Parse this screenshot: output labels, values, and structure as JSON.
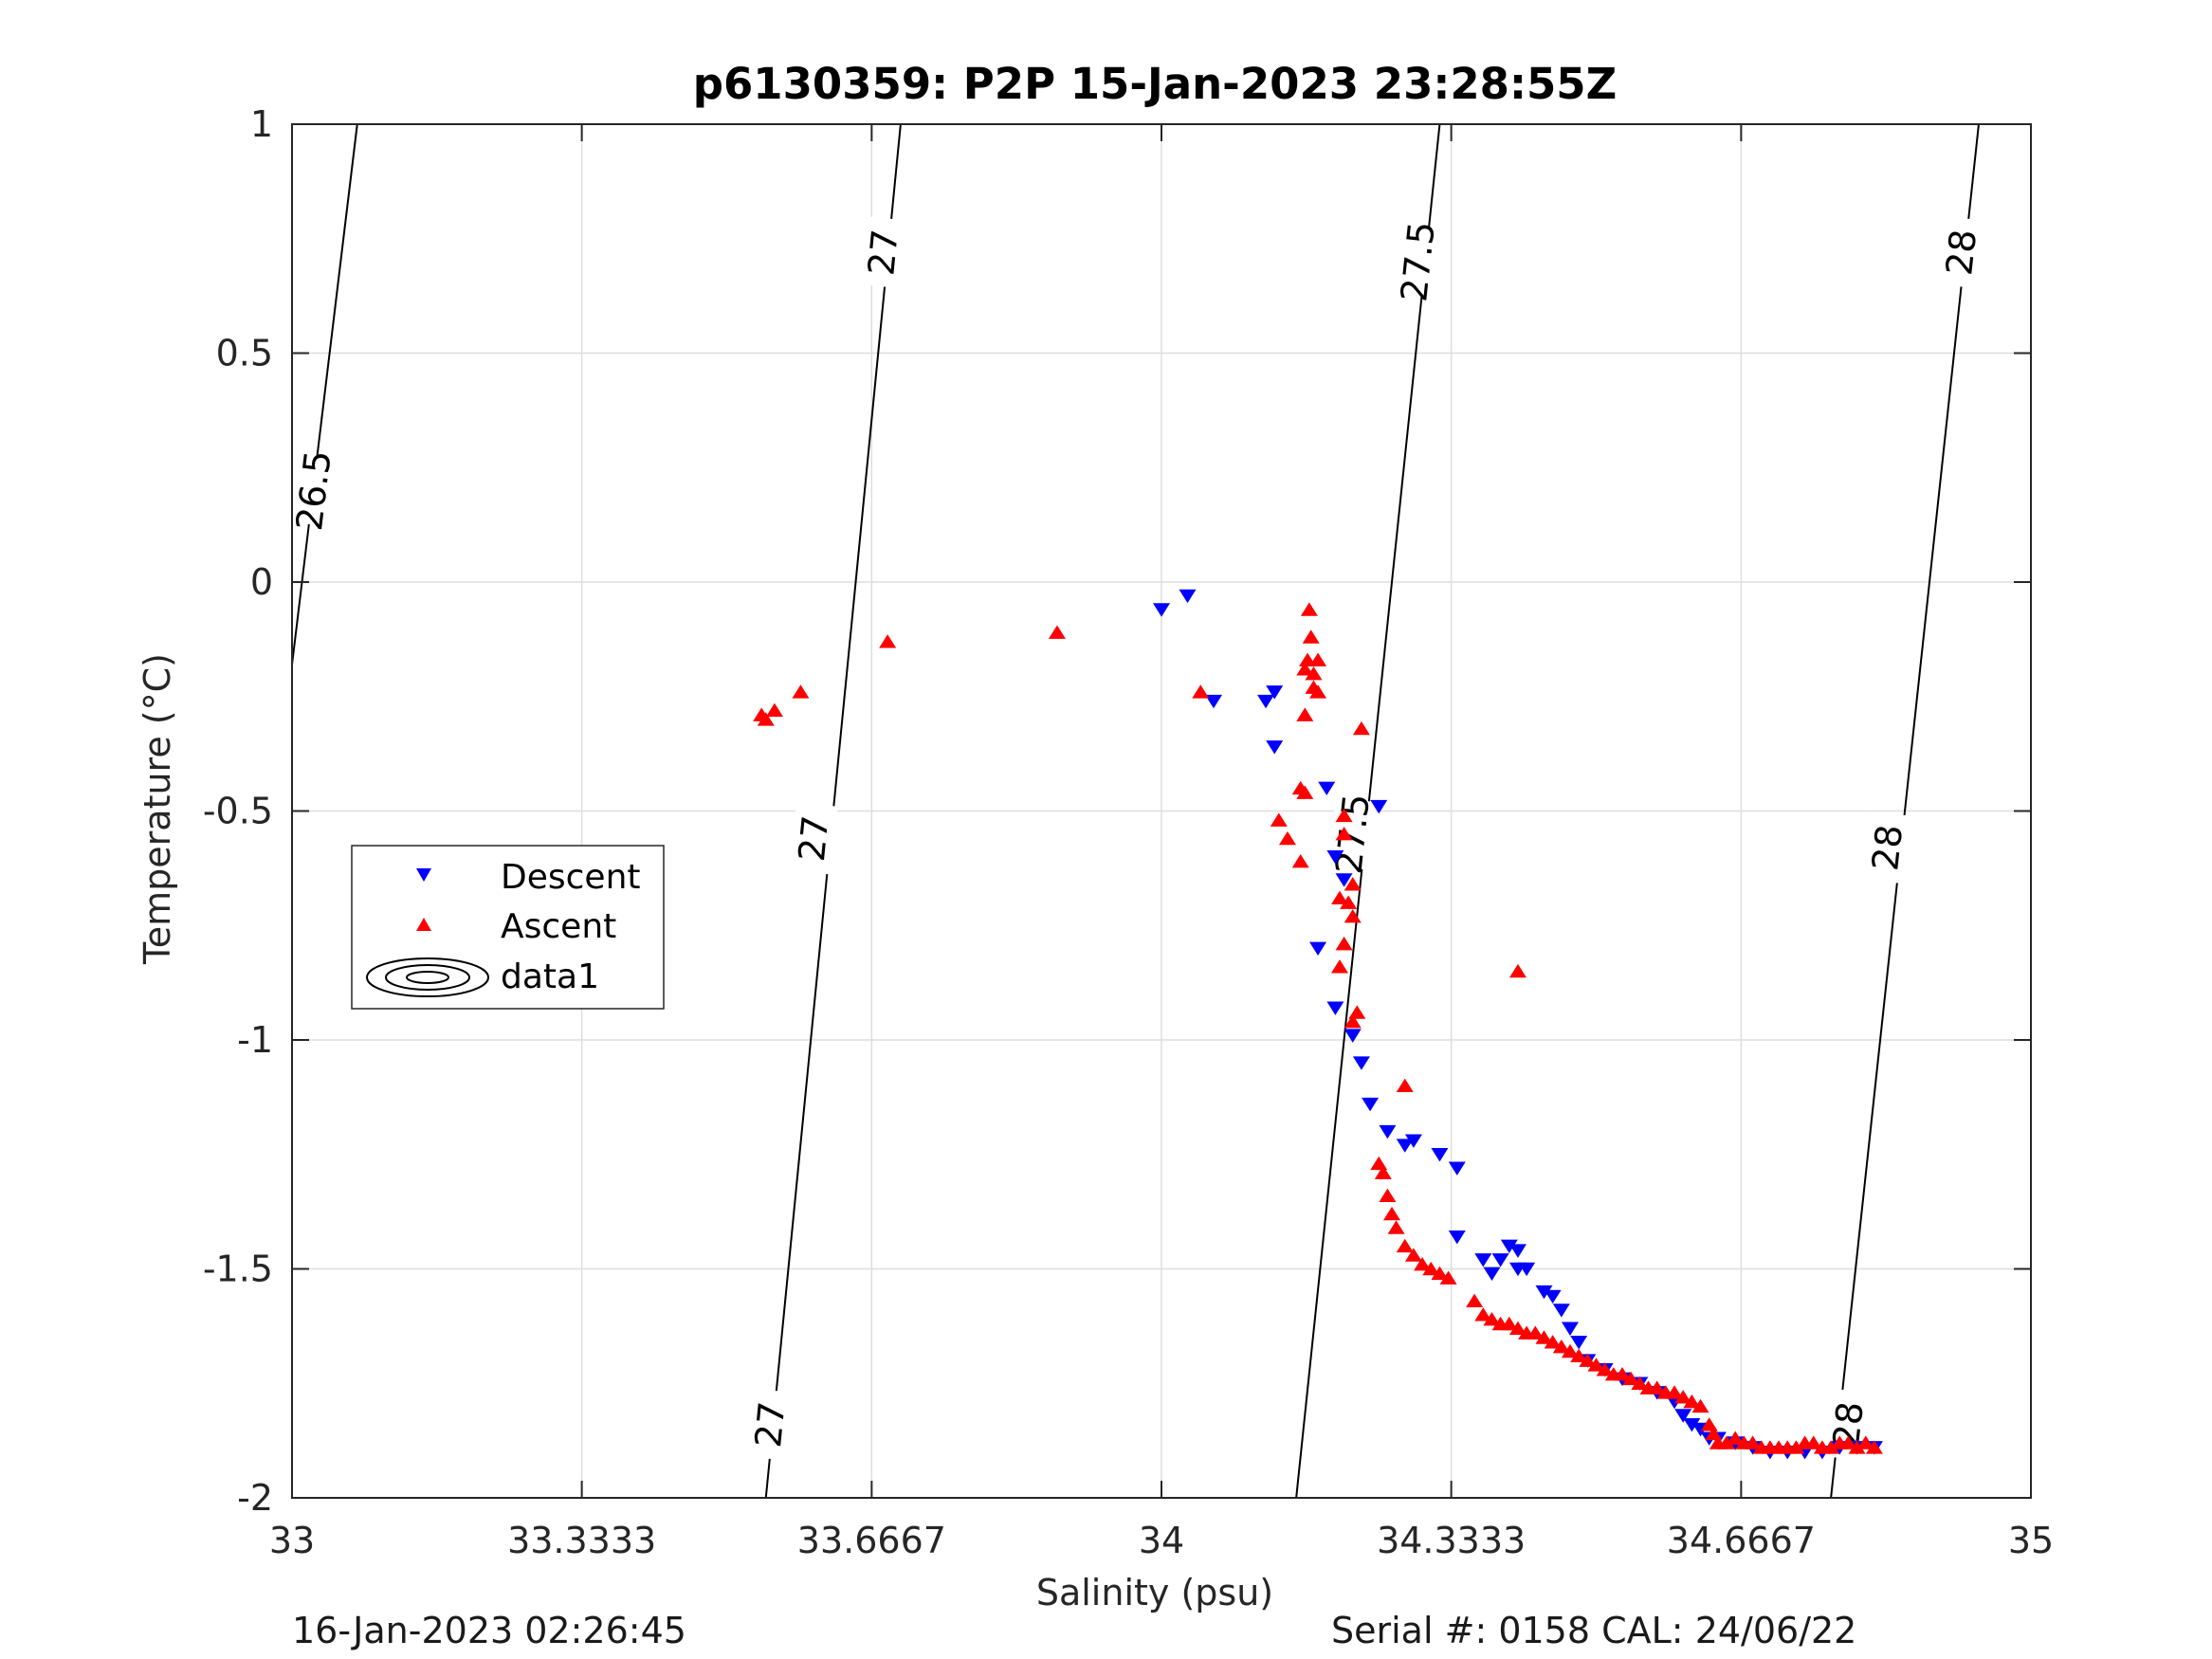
{
  "chart_data": {
    "type": "scatter",
    "title": "p6130359: P2P 15-Jan-2023 23:28:55Z",
    "xlabel": "Salinity (psu)",
    "ylabel": "Temperature (°C)",
    "xlim": [
      33,
      35
    ],
    "ylim": [
      -2,
      1
    ],
    "x_ticks": [
      "33",
      "33.3333",
      "33.6667",
      "34",
      "34.3333",
      "34.6667",
      "35"
    ],
    "y_ticks": [
      "1",
      "0.5",
      "0",
      "-0.5",
      "-1",
      "-1.5",
      "-2"
    ],
    "grid": true,
    "legend_position": "left",
    "legend": [
      "Descent",
      "Ascent",
      "data1"
    ],
    "colors": {
      "descent": "#0000ff",
      "ascent": "#ff0000",
      "contour": "#000000",
      "grid": "#dedede"
    },
    "density_contours": [
      {
        "level": "26.5",
        "points": [
          [
            33.075,
            1.0
          ],
          [
            33.0,
            -0.18
          ]
        ],
        "labels": [
          [
            33.025,
            0.2
          ]
        ]
      },
      {
        "level": "27",
        "points": [
          [
            33.7,
            1.0
          ],
          [
            33.545,
            -2.0
          ]
        ],
        "labels": [
          [
            33.68,
            0.72
          ],
          [
            33.6,
            -0.56
          ],
          [
            33.55,
            -1.84
          ]
        ]
      },
      {
        "level": "27.5",
        "points": [
          [
            34.32,
            1.0
          ],
          [
            34.155,
            -2.0
          ]
        ],
        "labels": [
          [
            34.295,
            0.7
          ],
          [
            34.22,
            -0.55
          ]
        ]
      },
      {
        "level": "28",
        "points": [
          [
            34.94,
            1.0
          ],
          [
            34.77,
            -2.0
          ]
        ],
        "labels": [
          [
            34.92,
            0.72
          ],
          [
            34.835,
            -0.58
          ],
          [
            34.79,
            -1.84
          ]
        ]
      }
    ],
    "series": [
      {
        "name": "Descent",
        "marker": "triangle-down",
        "points": [
          [
            34.0,
            -0.06
          ],
          [
            34.03,
            -0.03
          ],
          [
            34.06,
            -0.26
          ],
          [
            34.12,
            -0.26
          ],
          [
            34.13,
            -0.24
          ],
          [
            34.13,
            -0.36
          ],
          [
            34.19,
            -0.45
          ],
          [
            34.2,
            -0.6
          ],
          [
            34.21,
            -0.65
          ],
          [
            34.18,
            -0.8
          ],
          [
            34.2,
            -0.93
          ],
          [
            34.22,
            -0.99
          ],
          [
            34.23,
            -1.05
          ],
          [
            34.24,
            -1.14
          ],
          [
            34.26,
            -1.2
          ],
          [
            34.28,
            -1.23
          ],
          [
            34.29,
            -1.22
          ],
          [
            34.32,
            -1.25
          ],
          [
            34.34,
            -1.28
          ],
          [
            34.25,
            -0.49
          ],
          [
            34.34,
            -1.43
          ],
          [
            34.37,
            -1.48
          ],
          [
            34.38,
            -1.51
          ],
          [
            34.39,
            -1.48
          ],
          [
            34.4,
            -1.45
          ],
          [
            34.41,
            -1.46
          ],
          [
            34.41,
            -1.5
          ],
          [
            34.42,
            -1.5
          ],
          [
            34.44,
            -1.55
          ],
          [
            34.45,
            -1.56
          ],
          [
            34.46,
            -1.59
          ],
          [
            34.47,
            -1.63
          ],
          [
            34.48,
            -1.66
          ],
          [
            34.49,
            -1.7
          ],
          [
            34.51,
            -1.72
          ],
          [
            34.53,
            -1.74
          ],
          [
            34.55,
            -1.75
          ],
          [
            34.57,
            -1.77
          ],
          [
            34.59,
            -1.79
          ],
          [
            34.6,
            -1.82
          ],
          [
            34.61,
            -1.84
          ],
          [
            34.62,
            -1.85
          ],
          [
            34.63,
            -1.87
          ],
          [
            34.64,
            -1.87
          ],
          [
            34.66,
            -1.88
          ],
          [
            34.68,
            -1.89
          ],
          [
            34.7,
            -1.9
          ],
          [
            34.72,
            -1.9
          ],
          [
            34.74,
            -1.9
          ],
          [
            34.76,
            -1.9
          ],
          [
            34.78,
            -1.89
          ],
          [
            34.8,
            -1.89
          ],
          [
            34.82,
            -1.89
          ]
        ]
      },
      {
        "name": "Ascent",
        "marker": "triangle-up",
        "points": [
          [
            33.54,
            -0.29
          ],
          [
            33.545,
            -0.3
          ],
          [
            33.555,
            -0.28
          ],
          [
            33.585,
            -0.24
          ],
          [
            33.685,
            -0.13
          ],
          [
            33.88,
            -0.11
          ],
          [
            34.045,
            -0.24
          ],
          [
            34.17,
            -0.06
          ],
          [
            34.172,
            -0.12
          ],
          [
            34.168,
            -0.17
          ],
          [
            34.165,
            -0.19
          ],
          [
            34.175,
            -0.2
          ],
          [
            34.18,
            -0.17
          ],
          [
            34.175,
            -0.23
          ],
          [
            34.18,
            -0.24
          ],
          [
            34.165,
            -0.29
          ],
          [
            34.23,
            -0.32
          ],
          [
            34.16,
            -0.45
          ],
          [
            34.165,
            -0.46
          ],
          [
            34.135,
            -0.52
          ],
          [
            34.145,
            -0.56
          ],
          [
            34.16,
            -0.61
          ],
          [
            34.21,
            -0.51
          ],
          [
            34.21,
            -0.55
          ],
          [
            34.22,
            -0.66
          ],
          [
            34.205,
            -0.69
          ],
          [
            34.215,
            -0.7
          ],
          [
            34.22,
            -0.73
          ],
          [
            34.21,
            -0.79
          ],
          [
            34.205,
            -0.84
          ],
          [
            34.225,
            -0.94
          ],
          [
            34.22,
            -0.96
          ],
          [
            34.28,
            -1.1
          ],
          [
            34.25,
            -1.27
          ],
          [
            34.255,
            -1.29
          ],
          [
            34.26,
            -1.34
          ],
          [
            34.265,
            -1.38
          ],
          [
            34.27,
            -1.41
          ],
          [
            34.28,
            -1.45
          ],
          [
            34.29,
            -1.47
          ],
          [
            34.3,
            -1.49
          ],
          [
            34.31,
            -1.5
          ],
          [
            34.32,
            -1.51
          ],
          [
            34.33,
            -1.52
          ],
          [
            34.36,
            -1.57
          ],
          [
            34.37,
            -1.6
          ],
          [
            34.38,
            -1.61
          ],
          [
            34.39,
            -1.62
          ],
          [
            34.4,
            -1.62
          ],
          [
            34.41,
            -1.63
          ],
          [
            34.42,
            -1.64
          ],
          [
            34.43,
            -1.64
          ],
          [
            34.44,
            -1.65
          ],
          [
            34.45,
            -1.66
          ],
          [
            34.46,
            -1.67
          ],
          [
            34.47,
            -1.68
          ],
          [
            34.48,
            -1.69
          ],
          [
            34.49,
            -1.7
          ],
          [
            34.5,
            -1.71
          ],
          [
            34.51,
            -1.72
          ],
          [
            34.52,
            -1.73
          ],
          [
            34.53,
            -1.73
          ],
          [
            34.54,
            -1.74
          ],
          [
            34.55,
            -1.75
          ],
          [
            34.56,
            -1.76
          ],
          [
            34.57,
            -1.76
          ],
          [
            34.58,
            -1.77
          ],
          [
            34.59,
            -1.77
          ],
          [
            34.6,
            -1.78
          ],
          [
            34.61,
            -1.79
          ],
          [
            34.62,
            -1.8
          ],
          [
            34.63,
            -1.84
          ],
          [
            34.635,
            -1.86
          ],
          [
            34.64,
            -1.88
          ],
          [
            34.65,
            -1.88
          ],
          [
            34.66,
            -1.87
          ],
          [
            34.67,
            -1.88
          ],
          [
            34.68,
            -1.88
          ],
          [
            34.69,
            -1.89
          ],
          [
            34.7,
            -1.89
          ],
          [
            34.71,
            -1.89
          ],
          [
            34.72,
            -1.89
          ],
          [
            34.73,
            -1.89
          ],
          [
            34.74,
            -1.88
          ],
          [
            34.75,
            -1.88
          ],
          [
            34.76,
            -1.89
          ],
          [
            34.77,
            -1.89
          ],
          [
            34.78,
            -1.88
          ],
          [
            34.79,
            -1.88
          ],
          [
            34.8,
            -1.89
          ],
          [
            34.81,
            -1.88
          ],
          [
            34.82,
            -1.89
          ],
          [
            34.41,
            -0.85
          ]
        ]
      }
    ]
  },
  "footer": {
    "timestamp": "16-Jan-2023 02:26:45",
    "serial_cal": "Serial #: 0158  CAL: 24/06/22"
  }
}
